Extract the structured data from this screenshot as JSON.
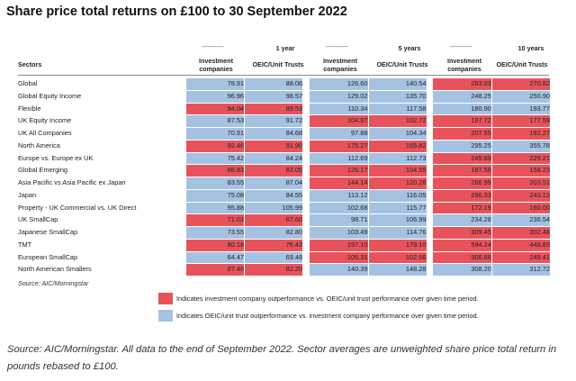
{
  "title": "Share price total returns on £100 to 30 September 2022",
  "columns": {
    "sectors": "Sectors",
    "dashes": "------------",
    "group_1y": "1 year",
    "group_5y": "5 years",
    "group_10y": "10 years",
    "investment_companies": "Investment companies",
    "oeic": "OEIC/Unit Trusts"
  },
  "rows": [
    {
      "sector": "Global",
      "v": [
        "78.91",
        "88.06",
        "126.60",
        "140.54",
        "283.03",
        "270.82"
      ],
      "c": [
        "blue",
        "blue",
        "blue",
        "blue",
        "red",
        "red"
      ]
    },
    {
      "sector": "Global Equity Income",
      "v": [
        "96.96",
        "98.57",
        "129.02",
        "135.70",
        "248.25",
        "250.90"
      ],
      "c": [
        "blue",
        "blue",
        "blue",
        "blue",
        "blue",
        "blue"
      ]
    },
    {
      "sector": "Flexible",
      "v": [
        "94.04",
        "89.53",
        "110.34",
        "117.58",
        "180.90",
        "193.77"
      ],
      "c": [
        "red",
        "red",
        "blue",
        "blue",
        "blue",
        "blue"
      ]
    },
    {
      "sector": "UK Equity Income",
      "v": [
        "87.53",
        "91.72",
        "104.97",
        "102.72",
        "187.72",
        "177.59"
      ],
      "c": [
        "blue",
        "blue",
        "red",
        "red",
        "red",
        "red"
      ]
    },
    {
      "sector": "UK All Companies",
      "v": [
        "70.91",
        "84.68",
        "97.88",
        "104.34",
        "207.55",
        "182.27"
      ],
      "c": [
        "blue",
        "blue",
        "blue",
        "blue",
        "red",
        "red"
      ]
    },
    {
      "sector": "North America",
      "v": [
        "92.46",
        "91.90",
        "175.27",
        "165.82",
        "295.25",
        "355.78"
      ],
      "c": [
        "red",
        "red",
        "red",
        "red",
        "blue",
        "blue"
      ]
    },
    {
      "sector": "Europe vs. Europe ex UK",
      "v": [
        "75.42",
        "84.24",
        "112.69",
        "112.73",
        "249.89",
        "229.21"
      ],
      "c": [
        "blue",
        "blue",
        "blue",
        "blue",
        "red",
        "red"
      ]
    },
    {
      "sector": "Global Emerging",
      "v": [
        "88.83",
        "82.05",
        "126.17",
        "104.55",
        "187.58",
        "158.23"
      ],
      "c": [
        "red",
        "red",
        "red",
        "red",
        "red",
        "red"
      ]
    },
    {
      "sector": "Asia Pacific vs Asia Pacific ex Japan",
      "v": [
        "83.55",
        "87.04",
        "144.14",
        "120.28",
        "266.99",
        "203.51"
      ],
      "c": [
        "blue",
        "blue",
        "red",
        "red",
        "red",
        "red"
      ]
    },
    {
      "sector": "Japan",
      "v": [
        "75.08",
        "84.55",
        "113.12",
        "116.05",
        "296.33",
        "243.13"
      ],
      "c": [
        "blue",
        "blue",
        "blue",
        "blue",
        "red",
        "red"
      ]
    },
    {
      "sector": "Property - UK Commercial vs. UK Direct",
      "v": [
        "95.88",
        "105.99",
        "102.68",
        "115.77",
        "172.19",
        "160.00"
      ],
      "c": [
        "blue",
        "blue",
        "blue",
        "blue",
        "red",
        "red"
      ]
    },
    {
      "sector": "UK SmallCap",
      "v": [
        "71.02",
        "67.60",
        "98.71",
        "106.99",
        "234.28",
        "236.54"
      ],
      "c": [
        "red",
        "red",
        "blue",
        "blue",
        "blue",
        "blue"
      ]
    },
    {
      "sector": "Japanese SmallCap",
      "v": [
        "73.55",
        "82.80",
        "103.49",
        "114.76",
        "309.45",
        "302.48"
      ],
      "c": [
        "blue",
        "blue",
        "blue",
        "blue",
        "red",
        "red"
      ]
    },
    {
      "sector": "TMT",
      "v": [
        "80.18",
        "76.43",
        "197.10",
        "179.10",
        "594.24",
        "448.83"
      ],
      "c": [
        "red",
        "red",
        "red",
        "red",
        "red",
        "red"
      ]
    },
    {
      "sector": "European SmallCap",
      "v": [
        "64.47",
        "69.48",
        "105.31",
        "102.66",
        "306.68",
        "249.41"
      ],
      "c": [
        "blue",
        "blue",
        "red",
        "red",
        "red",
        "red"
      ]
    },
    {
      "sector": "North American Smallers",
      "v": [
        "87.46",
        "82.20",
        "140.39",
        "148.28",
        "308.20",
        "312.72"
      ],
      "c": [
        "red",
        "red",
        "blue",
        "blue",
        "blue",
        "blue"
      ]
    }
  ],
  "source_note": "Source: AIC/Morningstar",
  "legend": {
    "red_label": "Indicates investment company outperformance vs. OEIC/unit trust performance over given time period.",
    "blue_label": "Indicates OEIC/unit trust outperformance vs. investment company performance over given time period."
  },
  "colors": {
    "red": "#e8535b",
    "blue": "#a5c2e3"
  },
  "footer": "Source: AIC/Morningstar. All data to the end of September 2022. Sector averages are unweighted share price total return in pounds rebased to £100."
}
